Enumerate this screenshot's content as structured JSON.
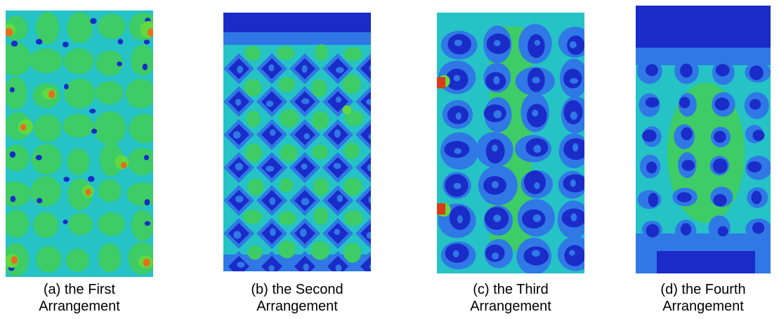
{
  "figure": {
    "panels": [
      {
        "caption": [
          "(a) the First",
          "Arrangement"
        ]
      },
      {
        "caption": [
          "(b) the Second",
          "Arrangement"
        ]
      },
      {
        "caption": [
          "(c) the Third",
          "Arrangement"
        ]
      },
      {
        "caption": [
          "(d) the Fourth",
          "Arrangement"
        ]
      }
    ]
  }
}
